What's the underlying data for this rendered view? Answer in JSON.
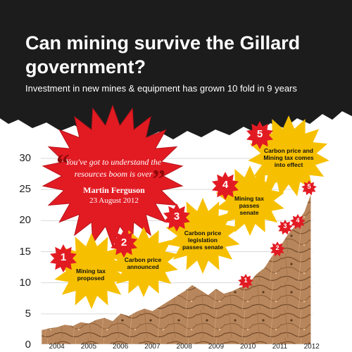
{
  "header": {
    "title": "Can mining survive the Gillard government?",
    "subtitle": "Investment in new mines & equipment has grown 10 fold in 9 years"
  },
  "quote": {
    "text": "You've got to understand the resources boom is over",
    "author": "Martin Ferguson",
    "date": "23 August 2012"
  },
  "events": [
    {
      "number": "1",
      "label": "Mining tax proposed"
    },
    {
      "number": "2",
      "label": "Carbon price announced"
    },
    {
      "number": "3",
      "label": "Carbon price legislation passes senate"
    },
    {
      "number": "4",
      "label": "Mining tax passes senate"
    },
    {
      "number": "5",
      "label": "Carbon price and Mining tax comes into effect"
    }
  ],
  "colors": {
    "header_bg": "#1c1c1c",
    "burst_red": "#e21b23",
    "burst_yellow": "#f6c000",
    "area_fill": "#b8865c",
    "axis_text": "#222222"
  },
  "chart_data": {
    "type": "area",
    "title": "Can mining survive the Gillard government?",
    "subtitle": "Investment in new mines & equipment has grown 10 fold in 9 years",
    "xlabel": "",
    "ylabel": "",
    "ylim": [
      0,
      30
    ],
    "yticks": [
      "0",
      "5",
      "10",
      "15",
      "20",
      "25",
      "30"
    ],
    "xticks": [
      "2004",
      "2005",
      "2006",
      "2007",
      "2008",
      "2009",
      "2010",
      "2011",
      "2012"
    ],
    "grid": true,
    "x": [
      "2004-01",
      "2004-04",
      "2004-07",
      "2004-10",
      "2005-01",
      "2005-04",
      "2005-07",
      "2005-10",
      "2006-01",
      "2006-04",
      "2006-07",
      "2006-10",
      "2007-01",
      "2007-04",
      "2007-07",
      "2007-10",
      "2008-01",
      "2008-04",
      "2008-07",
      "2008-10",
      "2009-01",
      "2009-04",
      "2009-07",
      "2009-10",
      "2010-01",
      "2010-04",
      "2010-07",
      "2010-10",
      "2011-01",
      "2011-04",
      "2011-07",
      "2011-10",
      "2012-01",
      "2012-04",
      "2012-07"
    ],
    "values": [
      2.5,
      2.8,
      3.0,
      3.4,
      3.2,
      3.8,
      3.6,
      4.2,
      4.5,
      4.0,
      5.2,
      4.8,
      5.5,
      6.0,
      5.6,
      6.4,
      7.2,
      8.0,
      8.8,
      9.8,
      9.0,
      8.2,
      9.2,
      8.4,
      8.8,
      9.4,
      10.0,
      11.5,
      12.5,
      14.5,
      16.0,
      18.0,
      19.5,
      21.5,
      25.0
    ]
  }
}
